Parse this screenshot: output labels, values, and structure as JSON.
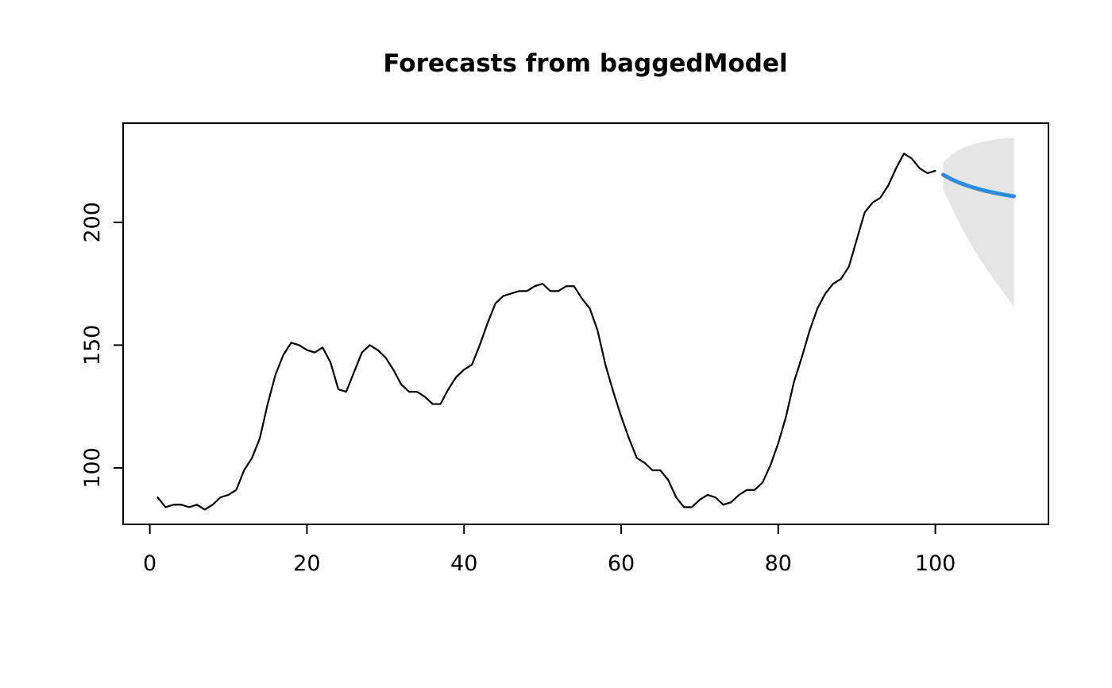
{
  "chart_data": {
    "type": "line",
    "title": "Forecasts from baggedModel",
    "xlabel": "",
    "ylabel": "",
    "xlim": [
      -3.4,
      114.4
    ],
    "ylim": [
      77,
      240.4
    ],
    "x_ticks": [
      0,
      20,
      40,
      60,
      80,
      100
    ],
    "y_ticks": [
      100,
      150,
      200
    ],
    "grid": false,
    "legend": "none",
    "frame_color": "#000000",
    "series": [
      {
        "name": "observed",
        "color": "#000000",
        "width": 2.2,
        "x_start": 1,
        "x_step": 1,
        "values": [
          88,
          84,
          85,
          85,
          84,
          85,
          83,
          85,
          88,
          89,
          91,
          99,
          104,
          112,
          126,
          138,
          146,
          151,
          150,
          148,
          147,
          149,
          143,
          132,
          131,
          139,
          147,
          150,
          148,
          145,
          140,
          134,
          131,
          131,
          129,
          126,
          126,
          132,
          137,
          140,
          142,
          150,
          159,
          167,
          170,
          171,
          172,
          172,
          174,
          175,
          172,
          172,
          174,
          174,
          169,
          165,
          156,
          142,
          131,
          121,
          112,
          104,
          102,
          99,
          99,
          95,
          88,
          84,
          84,
          87,
          89,
          88,
          85,
          86,
          89,
          91,
          91,
          94,
          101,
          110,
          121,
          135,
          145,
          156,
          165,
          171,
          175,
          177,
          182,
          193,
          204,
          208,
          210,
          215,
          222,
          228,
          226,
          222,
          220,
          221
        ]
      },
      {
        "name": "forecast-mean",
        "color": "#2b8cdd",
        "width": 5,
        "x_start": 101,
        "x_step": 1,
        "values": [
          219.4,
          217.6,
          216.2,
          215.0,
          214.0,
          213.1,
          212.4,
          211.7,
          211.1,
          210.6
        ]
      }
    ],
    "band": {
      "name": "prediction-interval",
      "color": "#e5e5e5",
      "x_start": 101,
      "x_step": 1,
      "upper": [
        224.5,
        227.5,
        229.5,
        230.9,
        232.0,
        232.8,
        233.4,
        233.9,
        234.2,
        234.4
      ],
      "lower": [
        213.5,
        206.5,
        200.0,
        194.0,
        188.5,
        183.5,
        178.8,
        174.3,
        170.0,
        165.8
      ]
    }
  }
}
